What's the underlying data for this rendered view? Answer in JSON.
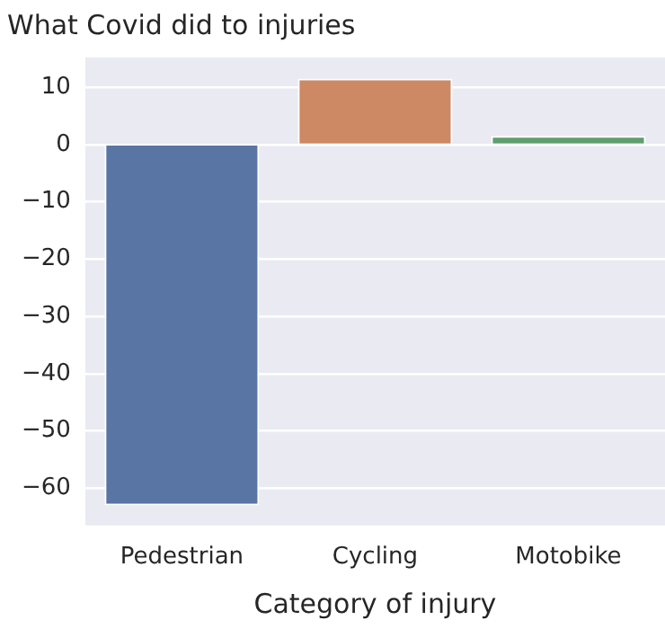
{
  "chart_data": {
    "type": "bar",
    "title": "What Covid did to injuries",
    "xlabel": "Category of injury",
    "categories": [
      "Pedestrian",
      "Cycling",
      "Motobike"
    ],
    "values": [
      -63,
      11.5,
      1.5
    ],
    "colors": [
      "#5975a4",
      "#cc8963",
      "#5f9e6e"
    ],
    "ylim": [
      -66.5,
      15.2
    ],
    "yticks": [
      -60,
      -50,
      -40,
      -30,
      -20,
      -10,
      0,
      10
    ],
    "grid": "y",
    "legend": false
  }
}
